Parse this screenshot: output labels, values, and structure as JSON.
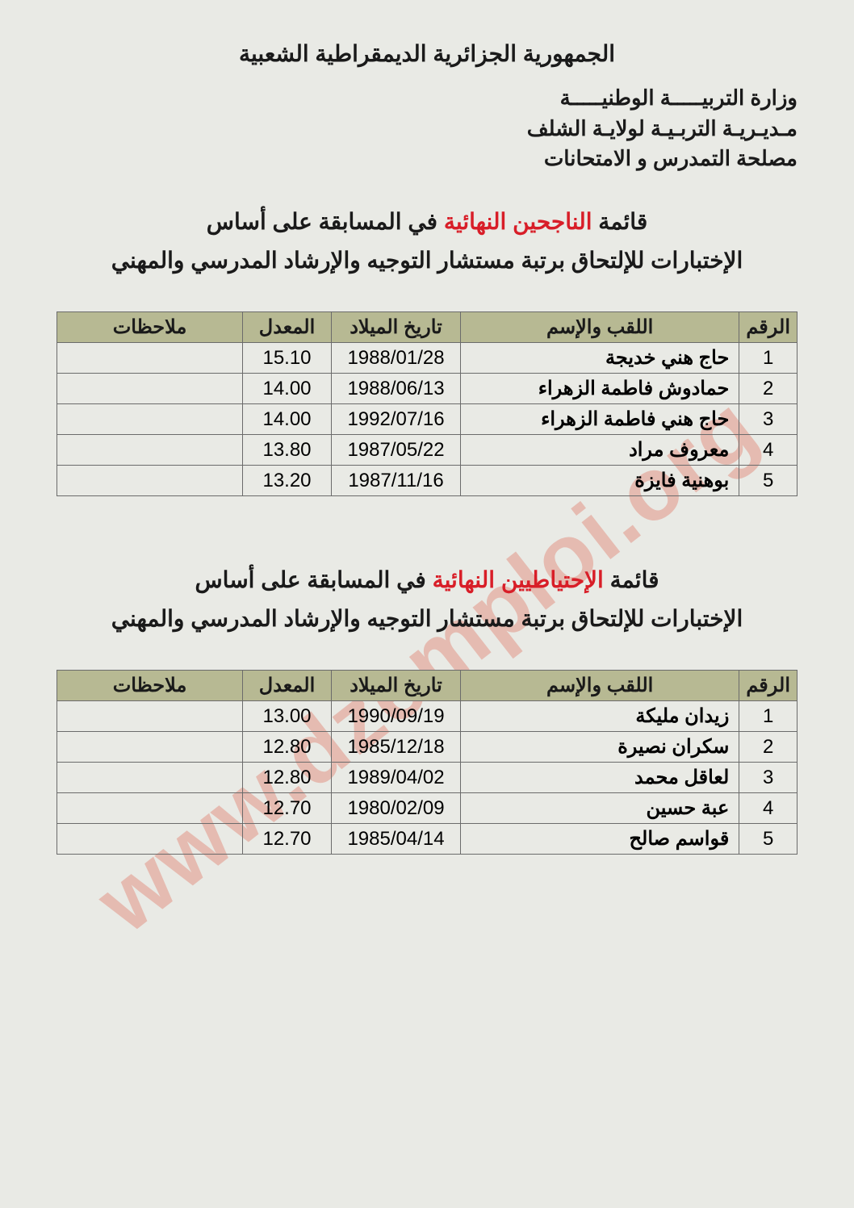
{
  "header": {
    "country": "الجمهورية الجزائرية الديمقراطية الشعبية",
    "line1": "وزارة التربيـــــة الوطنيـــــة",
    "line2": "مـديـريـة التربـيـة لولايـة الشلف",
    "line3": "مصلحة التمدرس و الامتحانات"
  },
  "section1": {
    "title_prefix": "قائمة ",
    "title_red": "الناجحين النهائية",
    "title_suffix": " في المسابقة على أساس",
    "title2": "الإختبارات للإلتحاق برتبة مستشار التوجيه والإرشاد المدرسي والمهني",
    "columns": {
      "num": "الرقم",
      "name": "اللقب والإسم",
      "dob": "تاريخ الميلاد",
      "avg": "المعدل",
      "notes": "ملاحظات"
    },
    "rows": [
      {
        "num": "1",
        "name": "حاج هني خديجة",
        "dob": "1988/01/28",
        "avg": "15.10",
        "notes": ""
      },
      {
        "num": "2",
        "name": "حمادوش فاطمة الزهراء",
        "dob": "1988/06/13",
        "avg": "14.00",
        "notes": ""
      },
      {
        "num": "3",
        "name": "حاج هني فاطمة الزهراء",
        "dob": "1992/07/16",
        "avg": "14.00",
        "notes": ""
      },
      {
        "num": "4",
        "name": "معروف مراد",
        "dob": "1987/05/22",
        "avg": "13.80",
        "notes": ""
      },
      {
        "num": "5",
        "name": "بوهنية فايزة",
        "dob": "1987/11/16",
        "avg": "13.20",
        "notes": ""
      }
    ]
  },
  "section2": {
    "title_prefix": "قائمة ",
    "title_red": "الإحتياطيين النهائية",
    "title_suffix": " في المسابقة على أساس",
    "title2": "الإختبارات للإلتحاق برتبة مستشار التوجيه والإرشاد المدرسي والمهني",
    "columns": {
      "num": "الرقم",
      "name": "اللقب والإسم",
      "dob": "تاريخ الميلاد",
      "avg": "المعدل",
      "notes": "ملاحظات"
    },
    "rows": [
      {
        "num": "1",
        "name": "زيدان مليكة",
        "dob": "1990/09/19",
        "avg": "13.00",
        "notes": ""
      },
      {
        "num": "2",
        "name": "سكران نصيرة",
        "dob": "1985/12/18",
        "avg": "12.80",
        "notes": ""
      },
      {
        "num": "3",
        "name": "لعاقل محمد",
        "dob": "1989/04/02",
        "avg": "12.80",
        "notes": ""
      },
      {
        "num": "4",
        "name": "عبة حسين",
        "dob": "1980/02/09",
        "avg": "12.70",
        "notes": ""
      },
      {
        "num": "5",
        "name": "قواسم صالح",
        "dob": "1985/04/14",
        "avg": "12.70",
        "notes": ""
      }
    ]
  },
  "watermark": "www.dzemploi.org",
  "style": {
    "page_bg": "#e9eae5",
    "header_bg": "#b7b993",
    "border_color": "#6b6b6b",
    "text_color": "#1a1a1a",
    "red": "#d81e28",
    "watermark_color": "rgba(221,79,57,0.30)"
  }
}
